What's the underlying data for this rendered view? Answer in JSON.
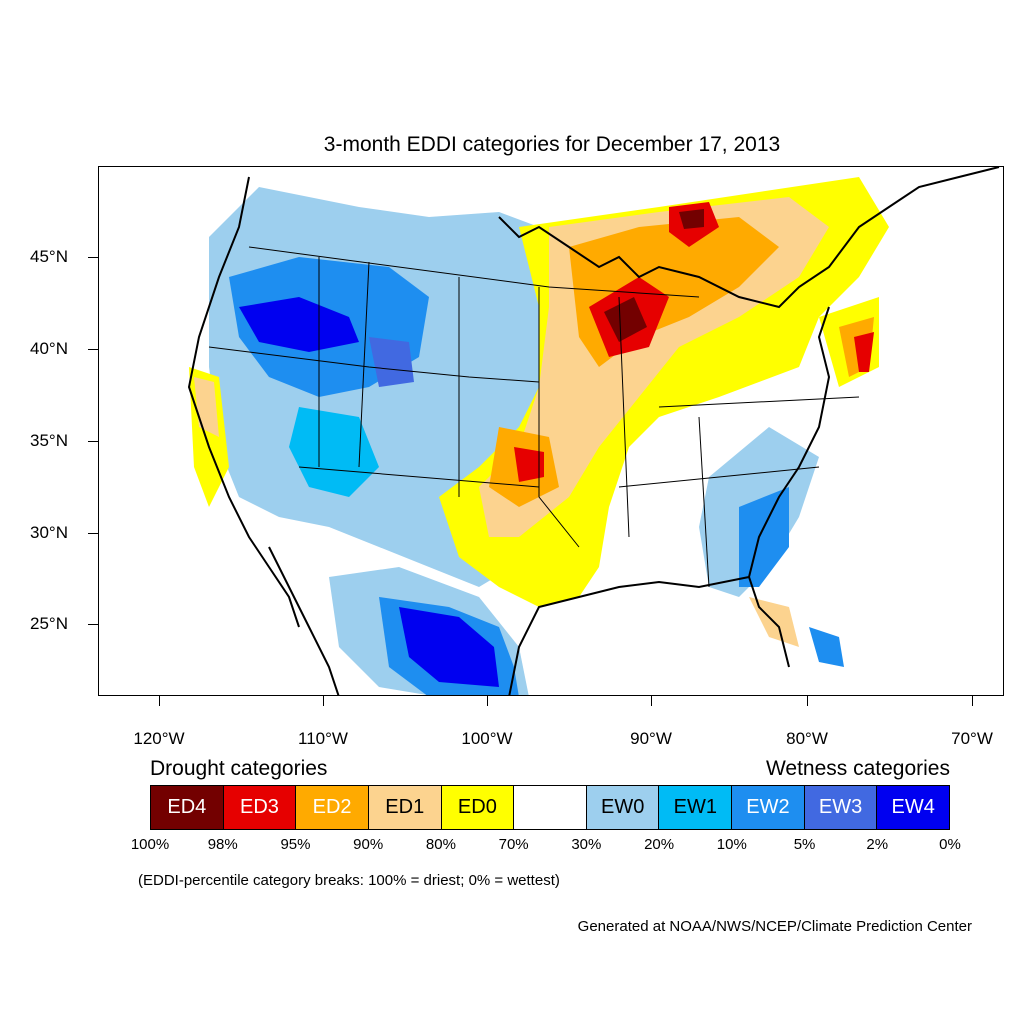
{
  "title": "3-month EDDI categories for December 17, 2013",
  "lat_labels": [
    "45°N",
    "40°N",
    "35°N",
    "30°N",
    "25°N"
  ],
  "lon_labels": [
    "120°W",
    "110°W",
    "100°W",
    "90°W",
    "80°W",
    "70°W"
  ],
  "legend": {
    "drought_heading": "Drought categories",
    "wetness_heading": "Wetness categories",
    "categories": [
      {
        "label": "ED4",
        "color": "#730000",
        "text_color": "#ffffff"
      },
      {
        "label": "ED3",
        "color": "#e60000",
        "text_color": "#ffffff"
      },
      {
        "label": "ED2",
        "color": "#ffaa00",
        "text_color": "#ffffff"
      },
      {
        "label": "ED1",
        "color": "#fcd38f",
        "text_color": "#000000"
      },
      {
        "label": "ED0",
        "color": "#ffff00",
        "text_color": "#000000"
      },
      {
        "label": "",
        "color": "#ffffff",
        "text_color": "#000000"
      },
      {
        "label": "EW0",
        "color": "#9dcfee",
        "text_color": "#000000"
      },
      {
        "label": "EW1",
        "color": "#00bbf5",
        "text_color": "#000000"
      },
      {
        "label": "EW2",
        "color": "#1e8ef0",
        "text_color": "#ffffff"
      },
      {
        "label": "EW3",
        "color": "#4169e1",
        "text_color": "#ffffff"
      },
      {
        "label": "EW4",
        "color": "#0000f0",
        "text_color": "#ffffff"
      }
    ],
    "breaks": [
      "100%",
      "98%",
      "95%",
      "90%",
      "80%",
      "70%",
      "30%",
      "20%",
      "10%",
      "5%",
      "2%",
      "0%"
    ],
    "note": "(EDDI-percentile category breaks: 100% = driest; 0% = wettest)"
  },
  "credit": "Generated at NOAA/NWS/NCEP/Climate Prediction Center"
}
